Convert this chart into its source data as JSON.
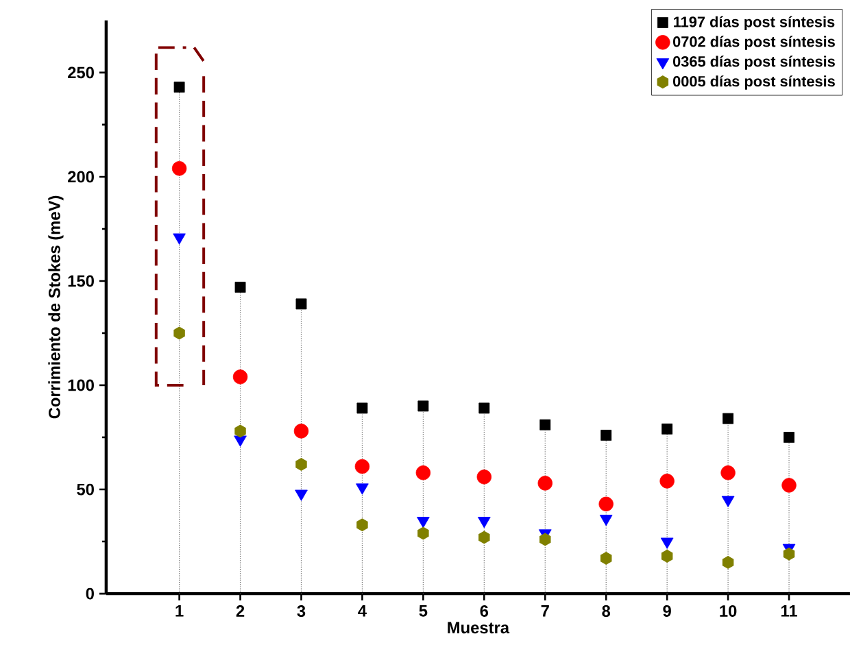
{
  "chart_data": {
    "type": "scatter",
    "xlabel": "Muestra",
    "ylabel": "Corrimiento de Stokes (meV)",
    "x": [
      1,
      2,
      3,
      4,
      5,
      6,
      7,
      8,
      9,
      10,
      11
    ],
    "xlim": [
      -0.2,
      12
    ],
    "xticks": [
      1,
      2,
      3,
      4,
      5,
      6,
      7,
      8,
      9,
      10,
      11
    ],
    "ylim": [
      0,
      275
    ],
    "yticks": [
      0,
      50,
      100,
      150,
      200,
      250
    ],
    "legend": "top right",
    "series": [
      {
        "name": "1197 días post síntesis",
        "type": "lollipop",
        "color": "#000000",
        "marker": "square",
        "values": [
          243,
          147,
          139,
          89,
          90,
          89,
          81,
          76,
          79,
          84,
          75
        ]
      },
      {
        "name": "0702 días post síntesis",
        "color": "#ff0000",
        "marker": "circle",
        "values": [
          204,
          104,
          78,
          61,
          58,
          56,
          53,
          43,
          54,
          58,
          52
        ]
      },
      {
        "name": "0365 días post síntesis",
        "color": "#0000ff",
        "marker": "triangle",
        "values": [
          171,
          74,
          48,
          51,
          35,
          35,
          29,
          36,
          25,
          45,
          22
        ]
      },
      {
        "name": "0005 días post síntesis",
        "color": "#808000",
        "values": [
          125,
          78,
          62,
          33,
          29,
          27,
          26,
          17,
          18,
          15,
          19
        ]
      }
    ]
  }
}
